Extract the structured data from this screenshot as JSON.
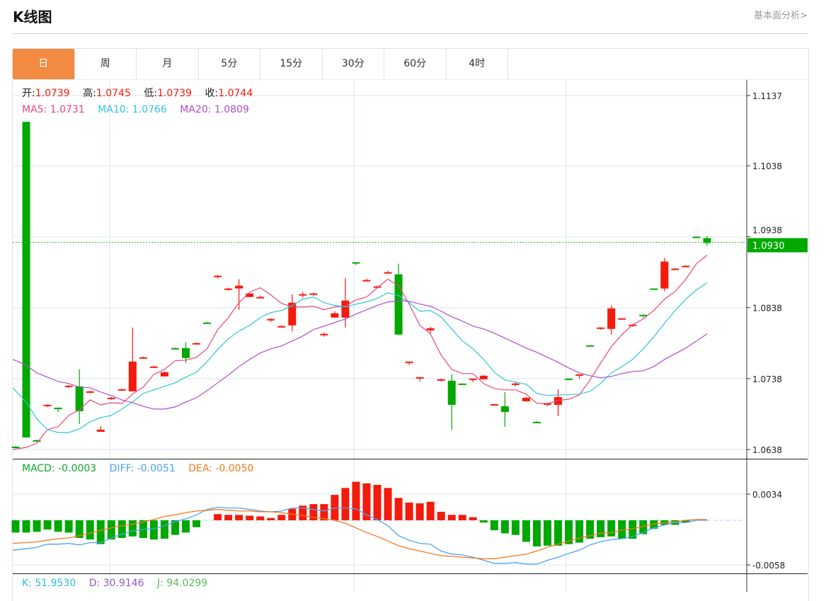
{
  "header": {
    "title": "K线图",
    "link": "基本面分析>"
  },
  "tabs": [
    {
      "label": "日",
      "active": true
    },
    {
      "label": "周"
    },
    {
      "label": "月"
    },
    {
      "label": "5分"
    },
    {
      "label": "15分"
    },
    {
      "label": "30分"
    },
    {
      "label": "60分"
    },
    {
      "label": "4时"
    }
  ],
  "ohlc_legend": {
    "open_label": "开:",
    "open": "1.0739",
    "high_label": "高:",
    "high": "1.0745",
    "low_label": "低:",
    "low": "1.0739",
    "close_label": "收:",
    "close": "1.0744"
  },
  "ma_legend": {
    "ma5": "MA5: 1.0731",
    "ma10": "MA10: 1.0766",
    "ma20": "MA20: 1.0809"
  },
  "macd_legend": {
    "macd": "MACD: -0.0003",
    "diff": "DIFF: -0.0051",
    "dea": "DEA: -0.0050"
  },
  "kdj_legend": {
    "k": "K: 51.9530",
    "d": "D: 30.9146",
    "j": "J: 94.0299"
  },
  "colors": {
    "up": "#f21b0c",
    "down": "#00a800",
    "ma5": "#e9467a",
    "ma10": "#2fc4da",
    "ma20": "#b04ec6",
    "diff": "#4aa3f0",
    "dea": "#f5781e",
    "active_tab": "#f28b41"
  },
  "chart_data": [
    {
      "type": "candlestick",
      "y_ticks": [
        "1.1137",
        "1.1038",
        "1.0938",
        "1.0838",
        "1.0738",
        "1.0638"
      ],
      "ylim": [
        1.0638,
        1.1137
      ],
      "grid": true,
      "last_price": "1.0930",
      "ohlc": [
        [
          1.0642,
          1.0641,
          1.0643,
          1.064
        ],
        [
          1.11,
          1.0655,
          1.11,
          1.0655
        ],
        [
          1.0651,
          1.065,
          1.0652,
          1.0649
        ],
        [
          1.0699,
          1.0701,
          1.0702,
          1.0698
        ],
        [
          1.0697,
          1.0696,
          1.0697,
          1.0691
        ],
        [
          1.0726,
          1.0728,
          1.0729,
          1.0725
        ],
        [
          1.0727,
          1.0692,
          1.0751,
          1.0674
        ],
        [
          1.0718,
          1.072,
          1.0721,
          1.0717
        ],
        [
          1.0663,
          1.0666,
          1.0671,
          1.0663
        ],
        [
          1.0709,
          1.0711,
          1.0712,
          1.0708
        ],
        [
          1.0721,
          1.0723,
          1.0724,
          1.0721
        ],
        [
          1.072,
          1.0762,
          1.081,
          1.072
        ],
        [
          1.0766,
          1.0768,
          1.0769,
          1.0766
        ],
        [
          1.0753,
          1.0755,
          1.0756,
          1.0753
        ],
        [
          1.0741,
          1.0747,
          1.0748,
          1.0741
        ],
        [
          1.0781,
          1.078,
          1.0782,
          1.078
        ],
        [
          1.0781,
          1.0767,
          1.0789,
          1.076
        ],
        [
          1.0787,
          1.0788,
          1.0789,
          1.0787
        ],
        [
          1.0817,
          1.0816,
          1.0818,
          1.0816
        ],
        [
          1.0882,
          1.0883,
          1.0884,
          1.0879
        ],
        [
          1.0864,
          1.0865,
          1.0866,
          1.0862
        ],
        [
          1.0865,
          1.0869,
          1.0878,
          1.0835
        ],
        [
          1.0853,
          1.0858,
          1.0858,
          1.0853
        ],
        [
          1.0852,
          1.0853,
          1.0855,
          1.0852
        ],
        [
          1.082,
          1.0822,
          1.0823,
          1.0818
        ],
        [
          1.081,
          1.0812,
          1.0813,
          1.081
        ],
        [
          1.0813,
          1.0845,
          1.0857,
          1.0805
        ],
        [
          1.0855,
          1.0857,
          1.086,
          1.0852
        ],
        [
          1.0856,
          1.0858,
          1.0859,
          1.0855
        ],
        [
          1.0799,
          1.0801,
          1.0803,
          1.0797
        ],
        [
          1.0824,
          1.083,
          1.0833,
          1.0824
        ],
        [
          1.0824,
          1.0848,
          1.088,
          1.081
        ],
        [
          1.0902,
          1.0901,
          1.0902,
          1.0898
        ],
        [
          1.0875,
          1.0877,
          1.0879,
          1.0875
        ],
        [
          1.0866,
          1.0868,
          1.0869,
          1.0866
        ],
        [
          1.0886,
          1.0888,
          1.089,
          1.0886
        ],
        [
          1.0885,
          1.08,
          1.09,
          1.0799
        ],
        [
          1.0761,
          1.0762,
          1.0762,
          1.0757
        ],
        [
          1.0738,
          1.074,
          1.074,
          1.0734
        ],
        [
          1.0806,
          1.0809,
          1.0811,
          1.0801
        ],
        [
          1.0735,
          1.0737,
          1.0738,
          1.0734
        ],
        [
          1.0735,
          1.0701,
          1.0744,
          1.0666
        ],
        [
          1.0731,
          1.073,
          1.0731,
          1.073
        ],
        [
          1.0736,
          1.0738,
          1.0738,
          1.0733
        ],
        [
          1.0737,
          1.0742,
          1.0743,
          1.0737
        ],
        [
          1.07,
          1.0702,
          1.0702,
          1.07
        ],
        [
          1.0699,
          1.0691,
          1.0719,
          1.067
        ],
        [
          1.0729,
          1.0731,
          1.0733,
          1.0727
        ],
        [
          1.0706,
          1.0711,
          1.0712,
          1.0706
        ],
        [
          1.0677,
          1.0676,
          1.0678,
          1.0676
        ],
        [
          1.0701,
          1.0703,
          1.0703,
          1.0699
        ],
        [
          1.0701,
          1.0712,
          1.0723,
          1.0685
        ],
        [
          1.0738,
          1.0737,
          1.0738,
          1.0736
        ],
        [
          1.0742,
          1.0744,
          1.0744,
          1.0738
        ],
        [
          1.0785,
          1.0784,
          1.0785,
          1.0783
        ],
        [
          1.0808,
          1.081,
          1.081,
          1.0807
        ],
        [
          1.0808,
          1.0837,
          1.0841,
          1.08
        ],
        [
          1.0821,
          1.0823,
          1.0823,
          1.0821
        ],
        [
          1.0812,
          1.0814,
          1.0814,
          1.0811
        ],
        [
          1.0828,
          1.0827,
          1.0828,
          1.0824
        ],
        [
          1.0865,
          1.0864,
          1.0865,
          1.0864
        ],
        [
          1.0865,
          1.0903,
          1.0908,
          1.0861
        ],
        [
          1.0891,
          1.0893,
          1.0894,
          1.0891
        ],
        [
          1.0895,
          1.0897,
          1.0898,
          1.0895
        ],
        [
          1.0938,
          1.0937,
          1.0938,
          1.0937
        ],
        [
          1.0936,
          1.0929,
          1.0939,
          1.0925
        ]
      ],
      "series": [
        {
          "name": "MA5",
          "values": [
            1.0638,
            1.0641,
            1.0647,
            1.0666,
            1.067,
            1.0686,
            1.0694,
            1.0708,
            1.0701,
            1.0704,
            1.0703,
            1.0716,
            1.0726,
            1.0744,
            1.0751,
            1.0763,
            1.0764,
            1.0768,
            1.078,
            1.0807,
            1.0824,
            1.0845,
            1.086,
            1.0866,
            1.0856,
            1.0844,
            1.0839,
            1.0839,
            1.084,
            1.0835,
            1.0839,
            1.084,
            1.0849,
            1.0853,
            1.0866,
            1.0878,
            1.0869,
            1.0843,
            1.0813,
            1.0801,
            1.0771,
            1.0751,
            1.0745,
            1.0745,
            1.0731,
            1.0724,
            1.0722,
            1.0722,
            1.0716,
            1.0703,
            1.0703,
            1.0707,
            1.0709,
            1.0715,
            1.0736,
            1.076,
            1.0783,
            1.08,
            1.0814,
            1.0822,
            1.0834,
            1.085,
            1.0861,
            1.0878,
            1.09,
            1.0912
          ]
        },
        {
          "name": "MA10",
          "values": [
            1.0725,
            1.0705,
            1.0681,
            1.0666,
            1.0662,
            1.0662,
            1.0667,
            1.0677,
            1.0683,
            1.0686,
            1.0695,
            1.0705,
            1.0717,
            1.0722,
            1.0727,
            1.0732,
            1.074,
            1.0747,
            1.0762,
            1.0779,
            1.0794,
            1.0805,
            1.0813,
            1.0824,
            1.0831,
            1.0834,
            1.0841,
            1.085,
            1.0853,
            1.0845,
            1.0841,
            1.0839,
            1.0843,
            1.0846,
            1.0851,
            1.0859,
            1.0855,
            1.0845,
            1.0833,
            1.0834,
            1.0825,
            1.0808,
            1.0791,
            1.078,
            1.0765,
            1.0747,
            1.0736,
            1.0733,
            1.073,
            1.0717,
            1.0714,
            1.0715,
            1.0715,
            1.0716,
            1.072,
            1.0731,
            1.0746,
            1.0755,
            1.0765,
            1.078,
            1.0797,
            1.0816,
            1.0834,
            1.085,
            1.0863,
            1.0873
          ]
        },
        {
          "name": "MA20",
          "values": [
            1.0765,
            1.0757,
            1.0746,
            1.074,
            1.0734,
            1.0731,
            1.0726,
            1.0725,
            1.0719,
            1.0714,
            1.0708,
            1.0704,
            1.0699,
            1.0695,
            1.0695,
            1.0698,
            1.0705,
            1.0711,
            1.0721,
            1.0732,
            1.0743,
            1.0755,
            1.0765,
            1.0774,
            1.078,
            1.0784,
            1.0791,
            1.0798,
            1.0807,
            1.0812,
            1.0817,
            1.0822,
            1.0829,
            1.0835,
            1.0841,
            1.0846,
            1.0848,
            1.0847,
            1.0843,
            1.084,
            1.0833,
            1.0825,
            1.0819,
            1.0812,
            1.0808,
            1.0802,
            1.0795,
            1.0788,
            1.0781,
            1.0775,
            1.0768,
            1.0761,
            1.0753,
            1.0746,
            1.0742,
            1.0739,
            1.0741,
            1.0745,
            1.0748,
            1.0749,
            1.0755,
            1.0765,
            1.0773,
            1.0781,
            1.0791,
            1.0801
          ]
        }
      ]
    },
    {
      "type": "bar",
      "y_ticks": [
        "0.0034",
        "-0.0058"
      ],
      "ylim": [
        -0.0058,
        0.0034
      ],
      "histogram": [
        -0.0016,
        -0.0016,
        -0.0015,
        -0.0012,
        -0.0015,
        -0.0016,
        -0.0023,
        -0.0025,
        -0.0031,
        -0.0025,
        -0.0023,
        -0.0021,
        -0.0023,
        -0.0025,
        -0.0024,
        -0.0019,
        -0.0016,
        -0.0009,
        0,
        0.0008,
        0.0007,
        0.0007,
        0.0006,
        0.0005,
        0.0003,
        0.0007,
        0.0015,
        0.0019,
        0.0021,
        0.0021,
        0.0033,
        0.0042,
        0.005,
        0.0048,
        0.0046,
        0.0042,
        0.0029,
        0.0023,
        0.0022,
        0.0024,
        0.0011,
        0.0007,
        0.0007,
        0.0004,
        -0.0003,
        -0.0013,
        -0.0017,
        -0.0019,
        -0.0028,
        -0.0034,
        -0.0033,
        -0.0033,
        -0.0031,
        -0.0029,
        -0.0024,
        -0.0022,
        -0.0021,
        -0.0024,
        -0.0024,
        -0.0018,
        -0.0011,
        -0.0006,
        -0.0006,
        -0.0003,
        0,
        0
      ],
      "series": [
        {
          "name": "DIFF",
          "values": [
            -0.0039,
            -0.0037,
            -0.0035,
            -0.0031,
            -0.0031,
            -0.003,
            -0.0032,
            -0.0029,
            -0.0029,
            -0.0023,
            -0.0018,
            -0.0014,
            -0.0012,
            -0.0011,
            -0.0007,
            -0.0002,
            0.0002,
            0.0007,
            0.0014,
            0.0017,
            0.0016,
            0.0016,
            0.0014,
            0.0012,
            0.0011,
            0.0012,
            0.0016,
            0.0016,
            0.0014,
            0.0012,
            0.0016,
            0.0016,
            0.0015,
            0.0007,
            0.0001,
            -0.0007,
            -0.002,
            -0.0026,
            -0.003,
            -0.0031,
            -0.004,
            -0.0044,
            -0.0045,
            -0.0048,
            -0.0052,
            -0.0056,
            -0.0056,
            -0.0055,
            -0.0057,
            -0.0057,
            -0.0052,
            -0.0048,
            -0.0043,
            -0.0039,
            -0.0032,
            -0.0028,
            -0.0025,
            -0.0024,
            -0.0021,
            -0.0016,
            -0.001,
            -0.0006,
            -0.0003,
            -0.0003,
            0,
            0
          ]
        },
        {
          "name": "DEA",
          "values": [
            -0.003,
            -0.0029,
            -0.0028,
            -0.0026,
            -0.0024,
            -0.0023,
            -0.002,
            -0.0017,
            -0.0013,
            -0.001,
            -0.0007,
            -0.0005,
            -0.0002,
            0.0001,
            0.0005,
            0.0007,
            0.001,
            0.0012,
            0.0013,
            0.0014,
            0.0013,
            0.0012,
            0.0012,
            0.0011,
            0.0011,
            0.001,
            0.0008,
            0.0006,
            0.0004,
            0.0002,
            0,
            -0.0004,
            -0.001,
            -0.0016,
            -0.0021,
            -0.0027,
            -0.0033,
            -0.0037,
            -0.004,
            -0.0043,
            -0.0046,
            -0.0047,
            -0.0048,
            -0.0049,
            -0.005,
            -0.005,
            -0.0048,
            -0.0046,
            -0.0044,
            -0.004,
            -0.0035,
            -0.0031,
            -0.0027,
            -0.0023,
            -0.002,
            -0.0017,
            -0.0016,
            -0.0013,
            -0.0011,
            -0.0008,
            -0.0005,
            -0.0003,
            -0.0002,
            0,
            0.0001,
            0.0001
          ]
        }
      ]
    }
  ]
}
